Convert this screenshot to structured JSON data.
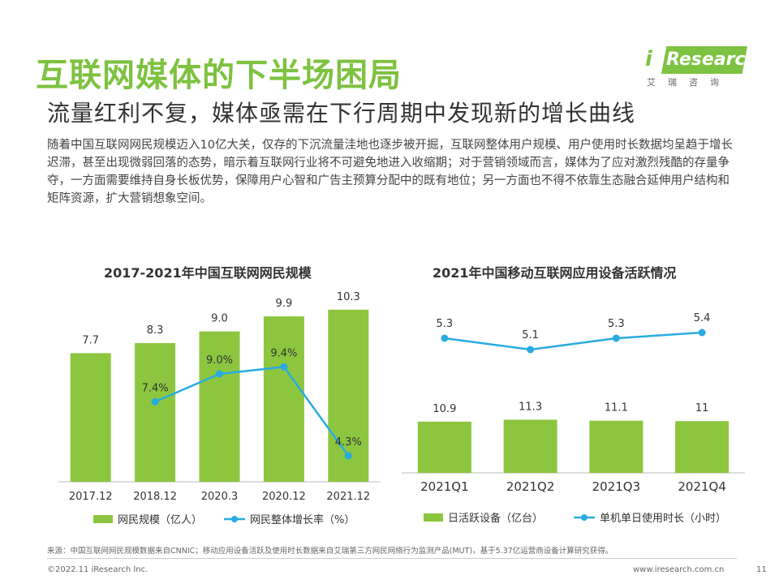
{
  "header": {
    "title": "互联网媒体的下半场困局",
    "subtitle": "流量红利不复，媒体亟需在下行周期中发现新的增长曲线",
    "paragraph": "随着中国互联网网民规模迈入10亿大关，仅存的下沉流量洼地也逐步被开掘，互联网整体用户规模、用户使用时长数据均呈趋于增长迟滞，甚至出现微弱回落的态势，暗示着互联网行业将不可避免地进入收缩期；对于营销领域而言，媒体为了应对激烈残酷的存量争夺，一方面需要维持自身长板优势，保障用户心智和广告主预算分配中的既有地位；另一方面也不得不依靠生态融合延伸用户结构和矩阵资源，扩大营销想象空间。"
  },
  "logo": {
    "i": "i",
    "word": "Research",
    "cn": "艾瑞咨询"
  },
  "colors": {
    "accent": "#7dc240",
    "bar": "#8cc63f",
    "line": "#29abe2"
  },
  "chart_data": [
    {
      "type": "bar",
      "title": "2017-2021年中国互联网网民规模",
      "categories": [
        "2017.12",
        "2018.12",
        "2020.3",
        "2020.12",
        "2021.12"
      ],
      "series": [
        {
          "name": "网民规模（亿人）",
          "kind": "bar",
          "values": [
            7.7,
            8.3,
            9.0,
            9.9,
            10.3
          ],
          "labels": [
            "7.7",
            "8.3",
            "9.0",
            "9.9",
            "10.3"
          ]
        },
        {
          "name": "网民整体增长率（%）",
          "kind": "line",
          "values": [
            null,
            7.4,
            9.0,
            9.4,
            4.3
          ],
          "labels": [
            "",
            "7.4%",
            "9.0%",
            "9.4%",
            "4.3%"
          ]
        }
      ],
      "legend_position": "bottom"
    },
    {
      "type": "bar",
      "title": "2021年中国移动互联网应用设备活跃情况",
      "categories": [
        "2021Q1",
        "2021Q2",
        "2021Q3",
        "2021Q4"
      ],
      "series": [
        {
          "name": "日活跃设备（亿台）",
          "kind": "bar",
          "values": [
            10.9,
            11.3,
            11.1,
            11
          ],
          "labels": [
            "10.9",
            "11.3",
            "11.1",
            "11"
          ]
        },
        {
          "name": "单机单日使用时长（小时）",
          "kind": "line",
          "values": [
            5.3,
            5.1,
            5.3,
            5.4
          ],
          "labels": [
            "5.3",
            "5.1",
            "5.3",
            "5.4"
          ]
        }
      ],
      "legend_position": "bottom"
    }
  ],
  "footer": {
    "source": "来源：中国互联网网民规模数据来自CNNIC；移动应用设备活跃及使用时长数据来自艾瑞第三方网民网络行为监测产品(MUT)，基于5.37亿运营商设备计算研究获得。",
    "copyright": "©2022.11 iResearch Inc.",
    "website": "www.iresearch.com.cn",
    "page": "11"
  }
}
